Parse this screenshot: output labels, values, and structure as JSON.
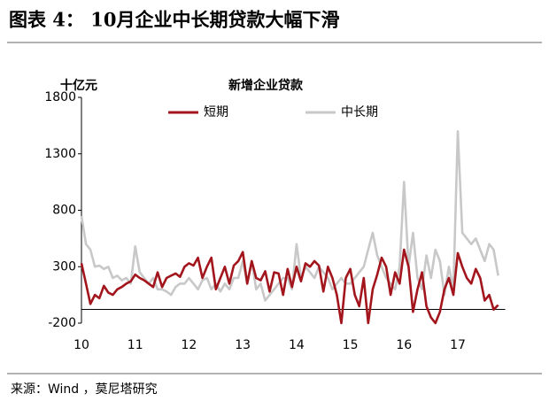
{
  "chart_data": {
    "type": "line",
    "figure_title": "图表 4： 10月企业中长期贷款大幅下滑",
    "title": "新增企业贷款",
    "y_label": "十亿元",
    "source": "来源：Wind ，莫尼塔研究",
    "categories": [
      "10",
      null,
      null,
      null,
      null,
      null,
      null,
      null,
      null,
      null,
      null,
      null,
      "11",
      null,
      null,
      null,
      null,
      null,
      null,
      null,
      null,
      null,
      null,
      null,
      "12",
      null,
      null,
      null,
      null,
      null,
      null,
      null,
      null,
      null,
      null,
      null,
      "13",
      null,
      null,
      null,
      null,
      null,
      null,
      null,
      null,
      null,
      null,
      null,
      "14",
      null,
      null,
      null,
      null,
      null,
      null,
      null,
      null,
      null,
      null,
      null,
      "15",
      null,
      null,
      null,
      null,
      null,
      null,
      null,
      null,
      null,
      null,
      null,
      "16",
      null,
      null,
      null,
      null,
      null,
      null,
      null,
      null,
      null,
      null,
      null,
      "17",
      null,
      null,
      null,
      null,
      null,
      null,
      null,
      null,
      null
    ],
    "series": [
      {
        "name": "短期",
        "color": "#a3151c",
        "values": [
          330,
          150,
          -30,
          50,
          20,
          130,
          70,
          50,
          100,
          120,
          150,
          170,
          230,
          200,
          180,
          150,
          120,
          250,
          120,
          200,
          220,
          240,
          210,
          300,
          330,
          310,
          380,
          200,
          300,
          380,
          100,
          200,
          300,
          150,
          310,
          350,
          430,
          150,
          350,
          200,
          180,
          260,
          80,
          250,
          240,
          50,
          280,
          120,
          300,
          170,
          330,
          300,
          350,
          310,
          80,
          300,
          200,
          50,
          -200,
          200,
          280,
          50,
          -50,
          200,
          -200,
          100,
          230,
          380,
          300,
          50,
          250,
          150,
          450,
          300,
          -100,
          100,
          250,
          -50,
          -150,
          -200,
          -100,
          100,
          200,
          50,
          420,
          300,
          200,
          150,
          280,
          200,
          0,
          50,
          -80,
          -40
        ]
      },
      {
        "name": "中长期",
        "color": "#c8c8c8",
        "values": [
          750,
          500,
          450,
          300,
          310,
          280,
          300,
          200,
          220,
          180,
          200,
          150,
          480,
          250,
          200,
          150,
          200,
          100,
          100,
          80,
          50,
          120,
          150,
          150,
          200,
          150,
          100,
          180,
          200,
          100,
          150,
          80,
          150,
          100,
          200,
          200,
          350,
          150,
          350,
          100,
          150,
          0,
          50,
          100,
          150,
          200,
          200,
          100,
          500,
          200,
          300,
          250,
          200,
          300,
          250,
          200,
          100,
          150,
          200,
          150,
          150,
          200,
          250,
          300,
          450,
          600,
          400,
          300,
          200,
          150,
          100,
          300,
          1050,
          300,
          600,
          200,
          100,
          400,
          200,
          450,
          350,
          50,
          300,
          100,
          1500,
          600,
          550,
          500,
          550,
          450,
          350,
          500,
          450,
          220
        ]
      }
    ],
    "ylim": [
      -200,
      1800
    ],
    "yticks": [
      -200,
      300,
      800,
      1300,
      1800
    ]
  }
}
